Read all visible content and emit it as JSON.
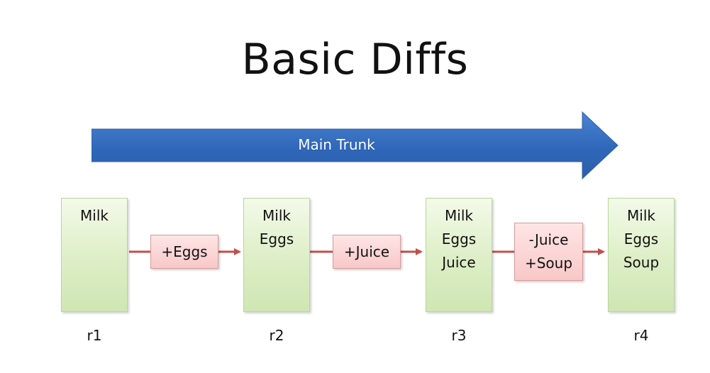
{
  "title": "Basic Diffs",
  "trunk": {
    "label": "Main Trunk",
    "color": "#4374C0"
  },
  "revisions": [
    {
      "label": "r1",
      "items": [
        "Milk"
      ]
    },
    {
      "label": "r2",
      "items": [
        "Milk",
        "Eggs"
      ]
    },
    {
      "label": "r3",
      "items": [
        "Milk",
        "Eggs",
        "Juice"
      ]
    },
    {
      "label": "r4",
      "items": [
        "Milk",
        "Eggs",
        "Soup"
      ]
    }
  ],
  "changes": [
    {
      "lines": [
        "+Eggs"
      ]
    },
    {
      "lines": [
        "+Juice"
      ]
    },
    {
      "lines": [
        "-Juice",
        "+Soup"
      ]
    }
  ],
  "colors": {
    "revision_fill": "#DDEEC6",
    "revision_border": "#B8D69A",
    "change_fill": "#F8C8C8",
    "change_border": "#D99999",
    "connector": "#C0504D"
  }
}
